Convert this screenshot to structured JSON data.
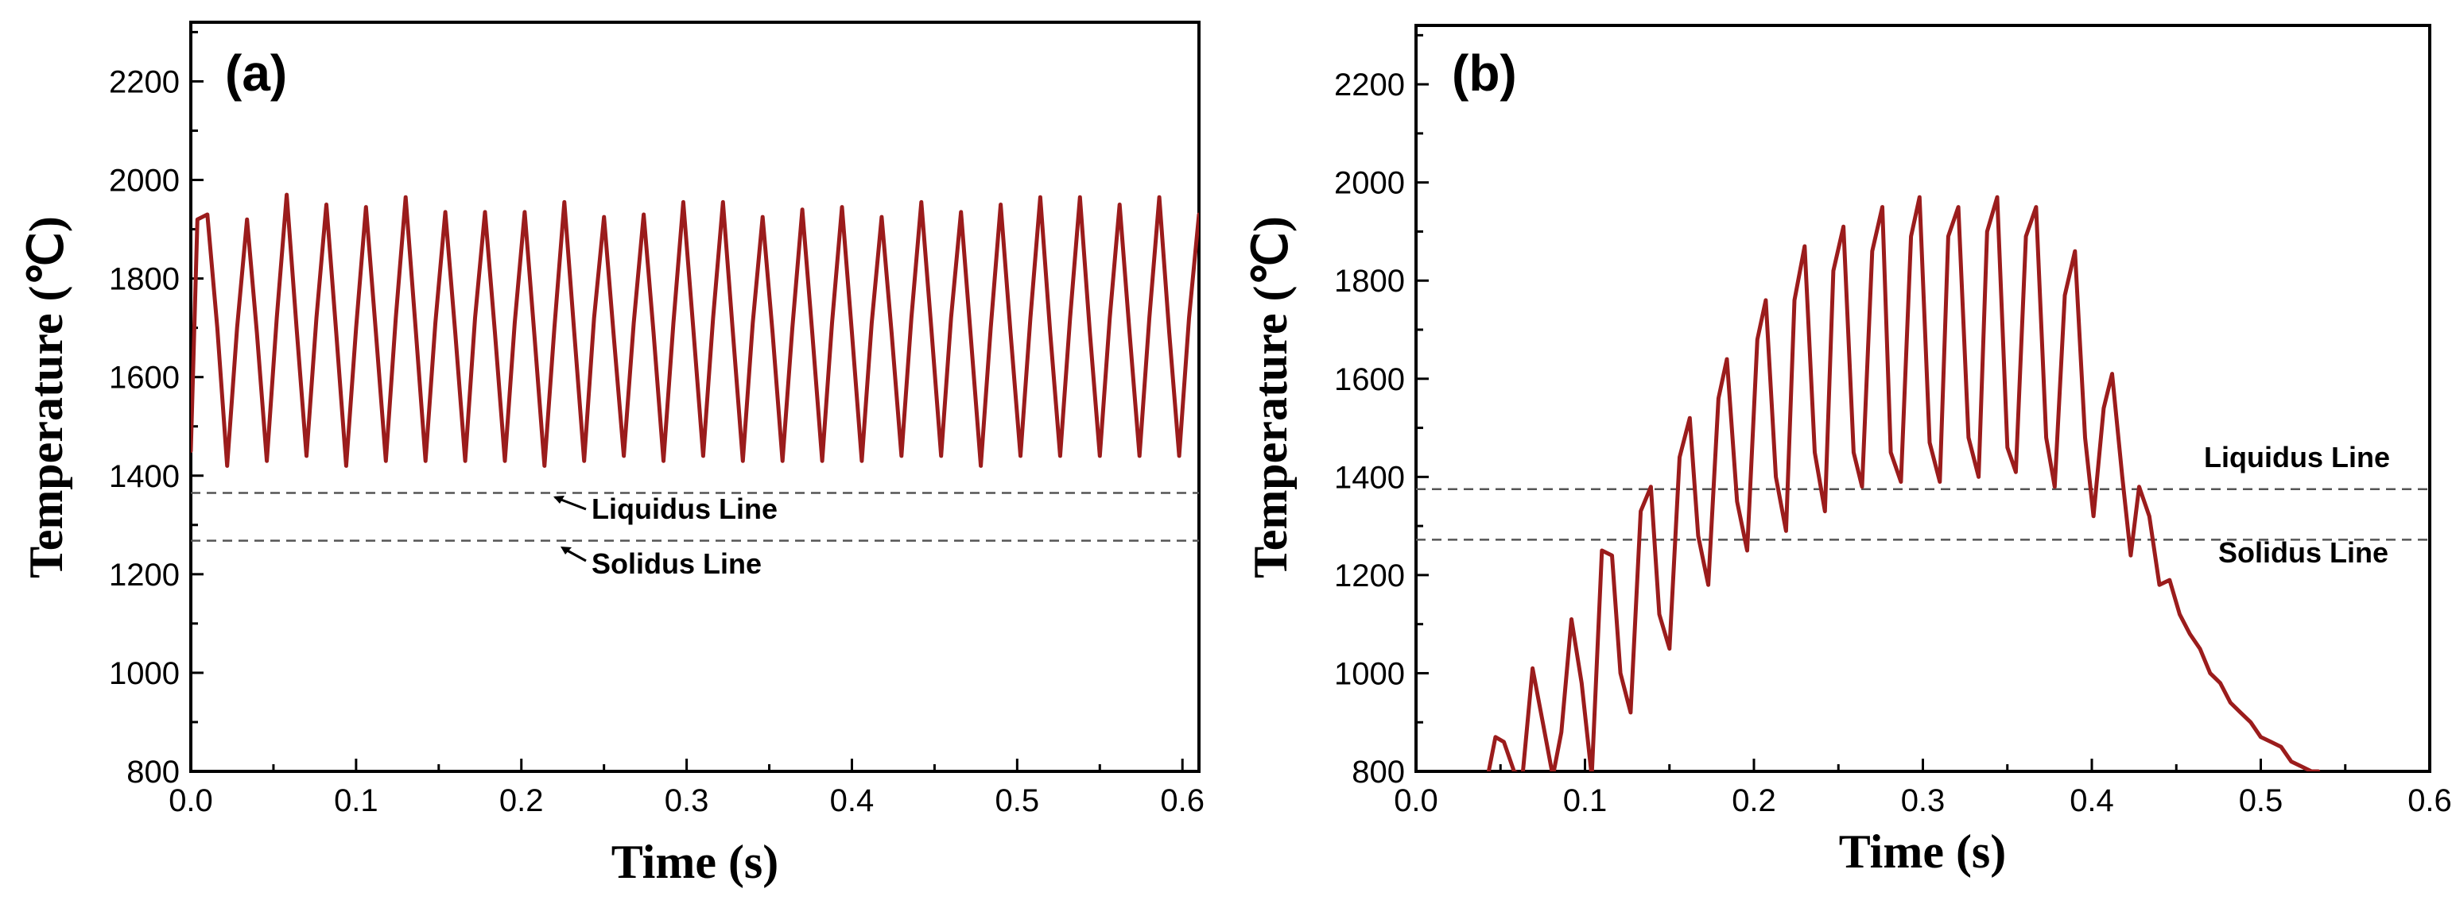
{
  "chart_data": [
    {
      "type": "line",
      "panel_label": "(a)",
      "xlabel": "Time (s)",
      "ylabel": "Temperature (℃)",
      "xlim": [
        0.0,
        0.61
      ],
      "ylim": [
        800,
        2320
      ],
      "xticks": [
        "0.0",
        "0.1",
        "0.2",
        "0.3",
        "0.4",
        "0.5",
        "0.6"
      ],
      "yticks": [
        "800",
        "1000",
        "1200",
        "1400",
        "1600",
        "1800",
        "2000",
        "2200"
      ],
      "series_color": "#9b1c1c",
      "reference_lines": [
        {
          "name": "Liquidus Line",
          "y": 1365
        },
        {
          "name": "Solidus Line",
          "y": 1268
        }
      ],
      "series": [
        {
          "name": "temperature",
          "x": [
            0.0,
            0.004,
            0.01,
            0.016,
            0.022,
            0.028,
            0.034,
            0.04,
            0.046,
            0.052,
            0.058,
            0.064,
            0.07,
            0.076,
            0.082,
            0.088,
            0.094,
            0.1,
            0.106,
            0.112,
            0.118,
            0.124,
            0.13,
            0.136,
            0.142,
            0.148,
            0.154,
            0.16,
            0.166,
            0.172,
            0.178,
            0.184,
            0.19,
            0.196,
            0.202,
            0.208,
            0.214,
            0.22,
            0.226,
            0.232,
            0.238,
            0.244,
            0.25,
            0.256,
            0.262,
            0.268,
            0.274,
            0.28,
            0.286,
            0.292,
            0.298,
            0.304,
            0.31,
            0.316,
            0.322,
            0.328,
            0.334,
            0.34,
            0.346,
            0.352,
            0.358,
            0.364,
            0.37,
            0.376,
            0.382,
            0.388,
            0.394,
            0.4,
            0.406,
            0.412,
            0.418,
            0.424,
            0.43,
            0.436,
            0.442,
            0.448,
            0.454,
            0.46,
            0.466,
            0.472,
            0.478,
            0.484,
            0.49,
            0.496,
            0.502,
            0.508,
            0.514,
            0.52,
            0.526,
            0.532,
            0.538,
            0.544,
            0.55,
            0.556,
            0.562,
            0.568,
            0.574,
            0.58,
            0.586,
            0.592,
            0.598,
            0.604,
            0.61
          ],
          "y": [
            1450,
            1920,
            1930,
            1700,
            1420,
            1700,
            1920,
            1690,
            1430,
            1720,
            1970,
            1700,
            1440,
            1720,
            1950,
            1690,
            1420,
            1700,
            1945,
            1690,
            1430,
            1720,
            1965,
            1700,
            1430,
            1710,
            1935,
            1690,
            1430,
            1720,
            1935,
            1690,
            1430,
            1710,
            1935,
            1680,
            1420,
            1700,
            1955,
            1690,
            1430,
            1720,
            1925,
            1680,
            1440,
            1710,
            1930,
            1690,
            1430,
            1710,
            1955,
            1700,
            1440,
            1720,
            1955,
            1690,
            1430,
            1710,
            1925,
            1690,
            1430,
            1700,
            1940,
            1690,
            1430,
            1710,
            1945,
            1690,
            1430,
            1710,
            1925,
            1690,
            1440,
            1720,
            1955,
            1700,
            1440,
            1720,
            1935,
            1680,
            1420,
            1700,
            1950,
            1690,
            1440,
            1720,
            1965,
            1690,
            1440,
            1720,
            1965,
            1690,
            1440,
            1720,
            1950,
            1690,
            1440,
            1720,
            1965,
            1690,
            1440,
            1720,
            1930
          ]
        }
      ]
    },
    {
      "type": "line",
      "panel_label": "(b)",
      "xlabel": "Time (s)",
      "ylabel": "Temperature (℃)",
      "xlim": [
        0.0,
        0.6
      ],
      "ylim": [
        800,
        2320
      ],
      "xticks": [
        "0.0",
        "0.1",
        "0.2",
        "0.3",
        "0.4",
        "0.5",
        "0.6"
      ],
      "yticks": [
        "800",
        "1000",
        "1200",
        "1400",
        "1600",
        "1800",
        "2000",
        "2200"
      ],
      "series_color": "#9b1c1c",
      "reference_lines": [
        {
          "name": "Liquidus Line",
          "y": 1375
        },
        {
          "name": "Solidus Line",
          "y": 1272
        }
      ],
      "series": [
        {
          "name": "temperature",
          "x": [
            0.043,
            0.047,
            0.052,
            0.058,
            0.063,
            0.069,
            0.075,
            0.081,
            0.086,
            0.092,
            0.098,
            0.104,
            0.11,
            0.116,
            0.121,
            0.127,
            0.133,
            0.139,
            0.144,
            0.15,
            0.156,
            0.162,
            0.167,
            0.173,
            0.179,
            0.184,
            0.19,
            0.196,
            0.202,
            0.207,
            0.213,
            0.219,
            0.224,
            0.23,
            0.236,
            0.242,
            0.247,
            0.253,
            0.259,
            0.264,
            0.27,
            0.276,
            0.281,
            0.287,
            0.293,
            0.298,
            0.304,
            0.31,
            0.315,
            0.321,
            0.327,
            0.333,
            0.338,
            0.344,
            0.35,
            0.355,
            0.361,
            0.367,
            0.373,
            0.378,
            0.384,
            0.39,
            0.396,
            0.401,
            0.407,
            0.412,
            0.418,
            0.423,
            0.428,
            0.434,
            0.44,
            0.446,
            0.452,
            0.458,
            0.464,
            0.47,
            0.476,
            0.482,
            0.488,
            0.494,
            0.5,
            0.506,
            0.512,
            0.518,
            0.524,
            0.53,
            0.534
          ],
          "y": [
            800,
            870,
            860,
            800,
            790,
            1010,
            900,
            790,
            880,
            1110,
            980,
            790,
            1250,
            1240,
            1000,
            920,
            1330,
            1380,
            1120,
            1050,
            1440,
            1520,
            1280,
            1180,
            1560,
            1640,
            1350,
            1250,
            1680,
            1760,
            1400,
            1290,
            1760,
            1870,
            1450,
            1330,
            1820,
            1910,
            1450,
            1380,
            1860,
            1950,
            1450,
            1390,
            1890,
            1970,
            1470,
            1390,
            1890,
            1950,
            1480,
            1400,
            1900,
            1970,
            1460,
            1410,
            1890,
            1950,
            1480,
            1380,
            1770,
            1860,
            1480,
            1320,
            1540,
            1610,
            1400,
            1240,
            1380,
            1320,
            1180,
            1190,
            1120,
            1080,
            1050,
            1000,
            980,
            940,
            920,
            900,
            870,
            860,
            850,
            820,
            810,
            800,
            800
          ]
        }
      ]
    }
  ]
}
